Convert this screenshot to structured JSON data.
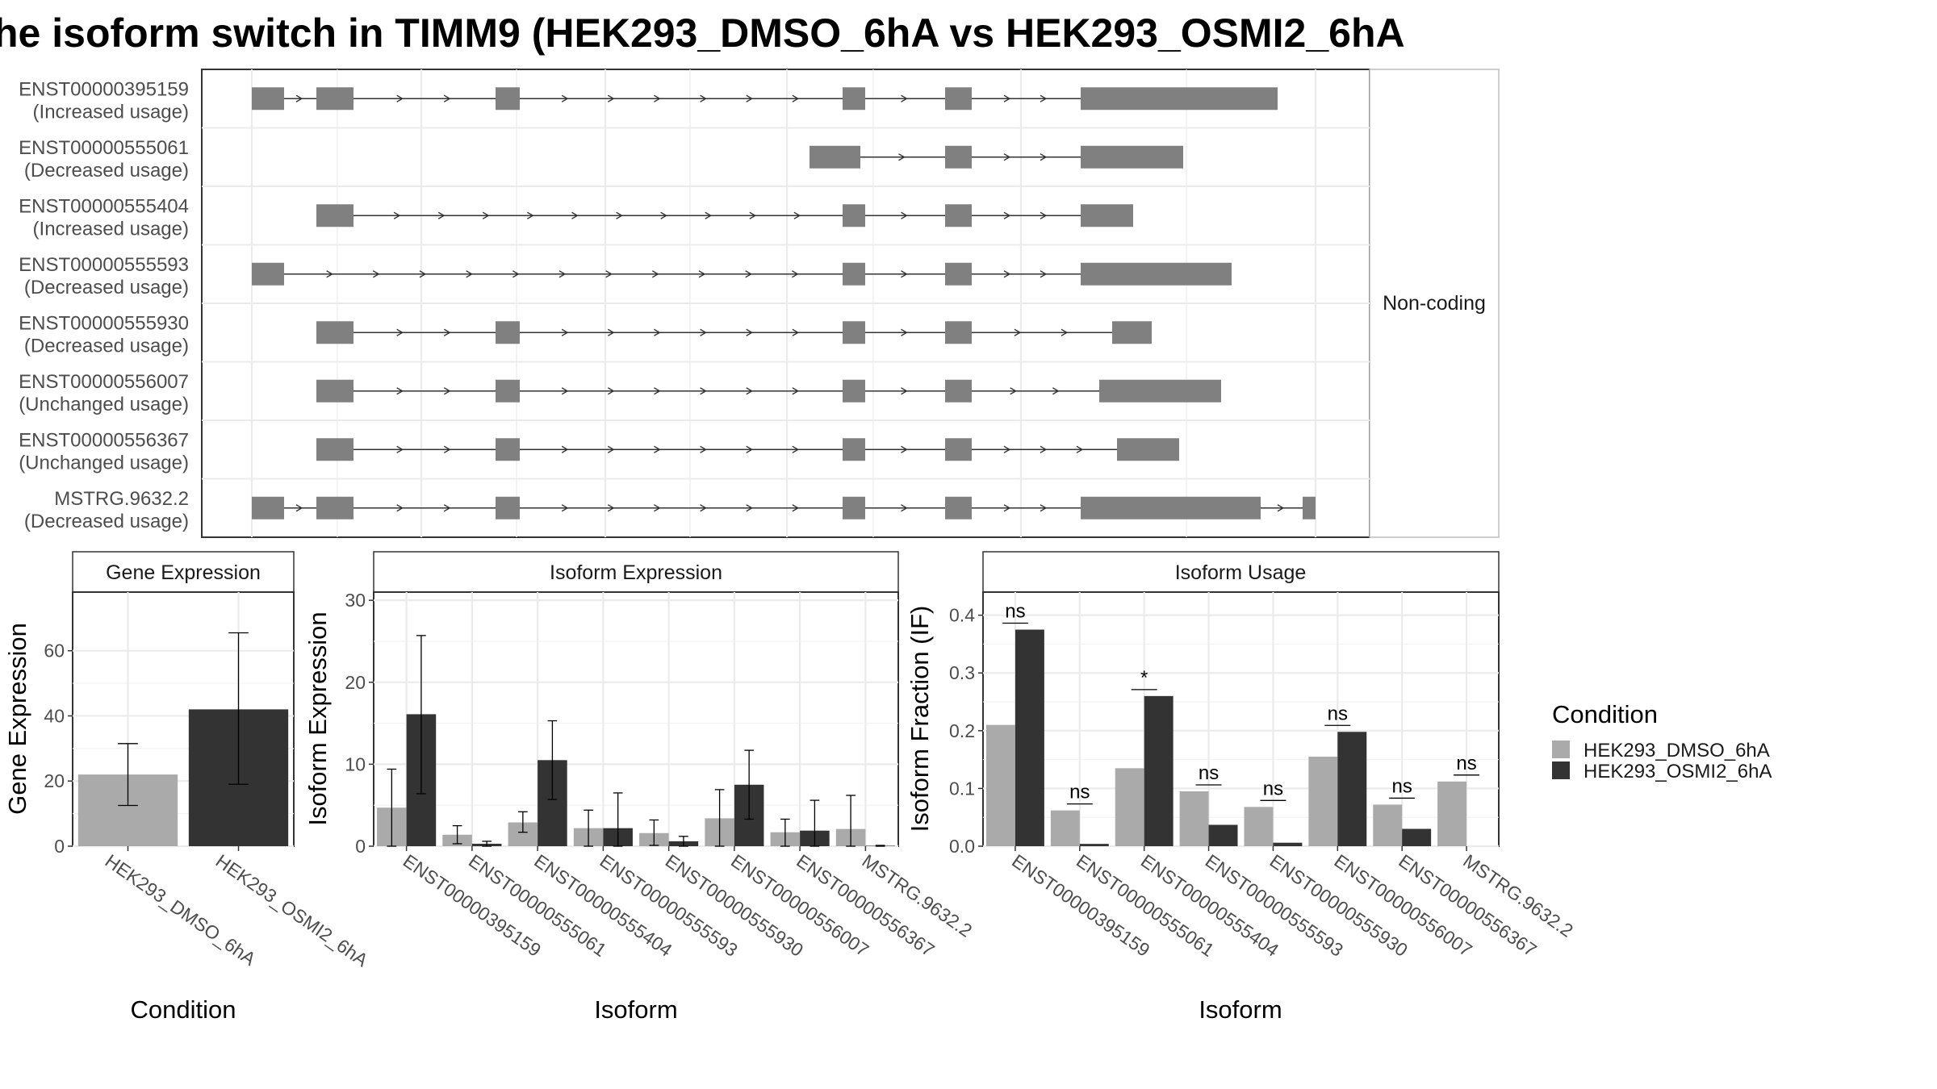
{
  "title": "he isoform switch in TIMM9 (HEK293_DMSO_6hA vs HEK293_OSMI2_6hA",
  "structure_panel": {
    "facet_label": "Non-coding",
    "isoforms": [
      {
        "id": "ENST00000395159",
        "usage": "(Increased usage)"
      },
      {
        "id": "ENST00000555061",
        "usage": "(Decreased usage)"
      },
      {
        "id": "ENST00000555404",
        "usage": "(Increased usage)"
      },
      {
        "id": "ENST00000555593",
        "usage": "(Decreased usage)"
      },
      {
        "id": "ENST00000555930",
        "usage": "(Decreased usage)"
      },
      {
        "id": "ENST00000556007",
        "usage": "(Unchanged usage)"
      },
      {
        "id": "ENST00000556367",
        "usage": "(Unchanged usage)"
      },
      {
        "id": "MSTRG.9632.2",
        "usage": "(Decreased usage)"
      }
    ]
  },
  "legend": {
    "title": "Condition",
    "items": [
      {
        "label": "HEK293_DMSO_6hA",
        "color": "#aaaaaa"
      },
      {
        "label": "HEK293_OSMI2_6hA",
        "color": "#333333"
      }
    ]
  },
  "colors": {
    "dmso": "#aaaaaa",
    "osmi": "#333333",
    "exon": "#808080"
  },
  "chart_data": [
    {
      "type": "bar",
      "title": "Gene Expression",
      "xlabel": "Condition",
      "ylabel": "Gene Expression",
      "ylim": [
        0,
        78
      ],
      "yticks": [
        0,
        20,
        40,
        60
      ],
      "categories": [
        "HEK293_DMSO_6hA",
        "HEK293_OSMI2_6hA"
      ],
      "values": [
        22,
        42
      ],
      "error_low": [
        12.5,
        19
      ],
      "error_high": [
        31.5,
        65.5
      ]
    },
    {
      "type": "bar",
      "title": "Isoform Expression",
      "xlabel": "Isoform",
      "ylabel": "Isoform Expression",
      "ylim": [
        0,
        31
      ],
      "yticks": [
        0,
        10,
        20,
        30
      ],
      "categories": [
        "ENST00000395159",
        "ENST00000555061",
        "ENST00000555404",
        "ENST00000555593",
        "ENST00000555930",
        "ENST00000556007",
        "ENST00000556367",
        "MSTRG.9632.2"
      ],
      "series": [
        {
          "name": "HEK293_DMSO_6hA",
          "values": [
            4.7,
            1.4,
            2.9,
            2.2,
            1.6,
            3.4,
            1.7,
            2.1
          ],
          "error_low": [
            0,
            0.3,
            1.7,
            0,
            0.1,
            0,
            0,
            0
          ],
          "error_high": [
            9.4,
            2.5,
            4.2,
            4.4,
            3.2,
            6.9,
            3.3,
            6.2
          ]
        },
        {
          "name": "HEK293_OSMI2_6hA",
          "values": [
            16.1,
            0.3,
            10.5,
            2.2,
            0.6,
            7.5,
            1.9,
            0.05
          ],
          "error_low": [
            6.4,
            0,
            5.7,
            0,
            0,
            3.3,
            0,
            0
          ],
          "error_high": [
            25.7,
            0.6,
            15.3,
            6.5,
            1.2,
            11.7,
            5.6,
            0.1
          ]
        }
      ]
    },
    {
      "type": "bar",
      "title": "Isoform Usage",
      "xlabel": "Isoform",
      "ylabel": "Isoform Fraction (IF)",
      "ylim": [
        0,
        0.44
      ],
      "yticks": [
        0.0,
        0.1,
        0.2,
        0.3,
        0.4
      ],
      "categories": [
        "ENST00000395159",
        "ENST00000555061",
        "ENST00000555404",
        "ENST00000555593",
        "ENST00000555930",
        "ENST00000556007",
        "ENST00000556367",
        "MSTRG.9632.2"
      ],
      "series": [
        {
          "name": "HEK293_DMSO_6hA",
          "values": [
            0.21,
            0.062,
            0.135,
            0.095,
            0.068,
            0.155,
            0.072,
            0.112
          ]
        },
        {
          "name": "HEK293_OSMI2_6hA",
          "values": [
            0.375,
            0.004,
            0.26,
            0.037,
            0.006,
            0.198,
            0.03,
            0
          ]
        }
      ],
      "significance": [
        "ns",
        "ns",
        "*",
        "ns",
        "ns",
        "ns",
        "ns",
        "ns"
      ]
    }
  ]
}
